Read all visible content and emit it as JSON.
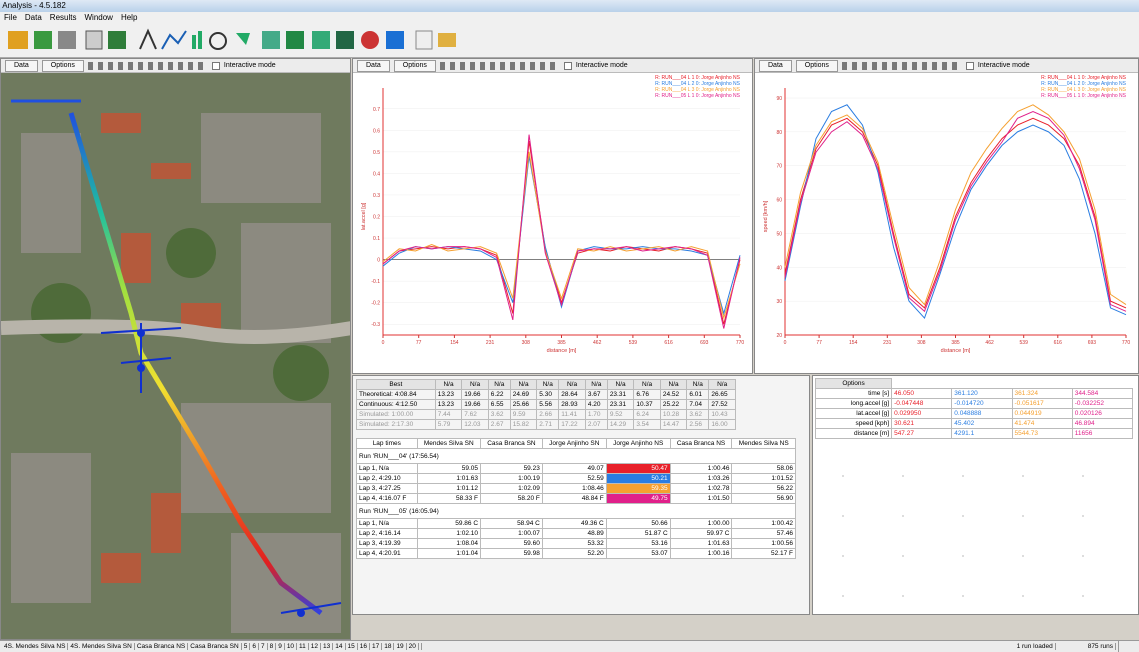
{
  "window": {
    "title": "Analysis - 4.5.182",
    "menu": [
      "File",
      "Data",
      "Results",
      "Window",
      "Help"
    ]
  },
  "panel_buttons": [
    "Data",
    "Options"
  ],
  "interactive_mode": "Interactive mode",
  "chart_data": [
    {
      "type": "line",
      "x_label": "distance [m]",
      "y_label": "lat.accel [g]",
      "x": [
        0,
        35,
        70,
        105,
        140,
        175,
        210,
        245,
        280,
        315,
        350,
        385,
        420,
        455,
        490,
        525,
        560,
        595,
        630,
        665,
        700,
        735,
        770
      ],
      "xlim": [
        0,
        770
      ],
      "xticks": [
        0,
        77,
        154,
        231,
        308,
        385,
        462,
        539,
        616,
        693,
        770
      ],
      "ylim": [
        -0.35,
        0.75
      ],
      "yticks": [
        -0.3,
        -0.2,
        -0.1,
        0,
        0.1,
        0.2,
        0.3,
        0.4,
        0.5,
        0.6,
        0.7
      ],
      "grid": true,
      "series": [
        {
          "name": "R: RUN___04 L 1 0: Jorge Anjinho NS",
          "color": "#e8202a",
          "values": [
            -0.02,
            0.04,
            0.05,
            0.06,
            0.05,
            0.06,
            0.05,
            0.02,
            -0.25,
            0.55,
            0.05,
            -0.2,
            0.03,
            0.05,
            0.04,
            0.06,
            0.05,
            0.04,
            0.06,
            0.05,
            0.03,
            -0.3,
            0.0
          ]
        },
        {
          "name": "R: RUN___04 L 2 0: Jorge Anjinho NS",
          "color": "#2a7de1",
          "values": [
            -0.03,
            0.03,
            0.06,
            0.05,
            0.06,
            0.05,
            0.04,
            0.0,
            -0.2,
            0.48,
            0.06,
            -0.22,
            0.04,
            0.06,
            0.05,
            0.05,
            0.06,
            0.05,
            0.05,
            0.04,
            0.02,
            -0.25,
            0.02
          ]
        },
        {
          "name": "R: RUN___04 L 3 0: Jorge Anjinho NS",
          "color": "#f5a030",
          "values": [
            -0.01,
            0.05,
            0.04,
            0.07,
            0.04,
            0.05,
            0.06,
            0.03,
            -0.18,
            0.5,
            0.04,
            -0.18,
            0.05,
            0.04,
            0.06,
            0.04,
            0.05,
            0.06,
            0.04,
            0.06,
            0.04,
            -0.27,
            -0.02
          ]
        },
        {
          "name": "R: RUN___05 L 1 0: Jorge Anjinho NS",
          "color": "#e0208a",
          "values": [
            -0.02,
            0.04,
            0.06,
            0.05,
            0.06,
            0.06,
            0.05,
            0.01,
            -0.28,
            0.58,
            0.03,
            -0.21,
            0.04,
            0.05,
            0.05,
            0.06,
            0.04,
            0.05,
            0.06,
            0.05,
            0.02,
            -0.32,
            0.01
          ]
        }
      ]
    },
    {
      "type": "line",
      "x_label": "distance [m]",
      "y_label": "speed [km/h]",
      "x": [
        0,
        35,
        70,
        105,
        140,
        175,
        210,
        245,
        280,
        315,
        350,
        385,
        420,
        455,
        490,
        525,
        560,
        595,
        630,
        665,
        700,
        735,
        770
      ],
      "xlim": [
        0,
        770
      ],
      "xticks": [
        0,
        77,
        154,
        231,
        308,
        385,
        462,
        539,
        616,
        693,
        770
      ],
      "ylim": [
        20,
        90
      ],
      "yticks": [
        20,
        30,
        40,
        50,
        60,
        70,
        80,
        90
      ],
      "grid": true,
      "series": [
        {
          "name": "R: RUN___04 L 1 0: Jorge Anjinho NS",
          "color": "#e8202a",
          "values": [
            38,
            60,
            75,
            82,
            84,
            80,
            70,
            50,
            32,
            28,
            40,
            55,
            65,
            72,
            78,
            82,
            84,
            82,
            78,
            70,
            55,
            30,
            28
          ]
        },
        {
          "name": "R: RUN___04 L 2 0: Jorge Anjinho NS",
          "color": "#2a7de1",
          "values": [
            36,
            58,
            78,
            86,
            88,
            82,
            68,
            46,
            30,
            25,
            38,
            52,
            63,
            70,
            76,
            80,
            82,
            80,
            76,
            66,
            50,
            28,
            26
          ]
        },
        {
          "name": "R: RUN___04 L 3 0: Jorge Anjinho NS",
          "color": "#f5a030",
          "values": [
            40,
            62,
            76,
            83,
            85,
            81,
            71,
            52,
            34,
            29,
            42,
            57,
            68,
            75,
            81,
            86,
            88,
            85,
            80,
            72,
            57,
            32,
            29
          ]
        },
        {
          "name": "R: RUN___05 L 1 0: Jorge Anjinho NS",
          "color": "#e0208a",
          "values": [
            37,
            59,
            74,
            80,
            83,
            79,
            69,
            49,
            31,
            27,
            39,
            54,
            64,
            71,
            77,
            84,
            86,
            84,
            79,
            69,
            54,
            29,
            27
          ]
        }
      ]
    }
  ],
  "best_table": {
    "header": [
      "Best",
      "N/a",
      "N/a",
      "N/a",
      "N/a",
      "N/a",
      "N/a",
      "N/a",
      "N/a",
      "N/a",
      "N/a",
      "N/a",
      "N/a"
    ],
    "rows": [
      [
        "Theoretical: 4:08.84",
        "13.23",
        "19.66",
        "6.22",
        "24.69",
        "5.30",
        "28.64",
        "3.67",
        "23.31",
        "6.76",
        "24.52",
        "6.01",
        "26.65"
      ],
      [
        "Continuous: 4:12.50",
        "13.23",
        "19.66",
        "6.55",
        "25.66",
        "5.56",
        "28.93",
        "4.20",
        "23.31",
        "10.37",
        "25.22",
        "7.04",
        "27.52"
      ],
      [
        "Simulated: 1:00.00",
        "7.44",
        "7.62",
        "3.62",
        "9.59",
        "2.66",
        "11.41",
        "1.70",
        "9.52",
        "6.24",
        "10.28",
        "3.62",
        "10.43"
      ],
      [
        "Simulated: 2:17.30",
        "5.79",
        "12.03",
        "2.67",
        "15.82",
        "2.71",
        "17.22",
        "2.07",
        "14.29",
        "3.54",
        "14.47",
        "2.56",
        "16.00"
      ]
    ]
  },
  "lap_table": {
    "header": [
      "Lap times",
      "Mendes Silva SN",
      "Casa Branca SN",
      "Jorge Anjinho SN",
      "Jorge Anjinho NS",
      "Casa Branca NS",
      "Mendes Silva NS"
    ],
    "groups": [
      {
        "label": "Run 'RUN___04' (17:56.54)",
        "rows": [
          [
            "Lap 1, N/a",
            "59.05",
            "59.23",
            "49.07",
            "50.47",
            "1:00.46",
            "58.06"
          ],
          [
            "Lap 2, 4:29.10",
            "1:01.63",
            "1:00.19",
            "52.59",
            "50.21",
            "1:03.26",
            "1:01.52"
          ],
          [
            "Lap 3, 4:27.25",
            "1:01.12",
            "1:02.09",
            "1:08.46",
            "59.35",
            "1:02.78",
            "56.22"
          ],
          [
            "Lap 4, 4:16.07 F",
            "58.33 F",
            "58.20 F",
            "48.84 F",
            "49.75",
            "1:01.50",
            "56.90"
          ]
        ]
      },
      {
        "label": "Run 'RUN___05' (16:05.94)",
        "rows": [
          [
            "Lap 1, N/a",
            "59.86 C",
            "58.94 C",
            "49.36 C",
            "50.66",
            "1:00.00",
            "1:00.42"
          ],
          [
            "Lap 2, 4:16.14",
            "1:02.10",
            "1:00.07",
            "48.89",
            "51.87 C",
            "59.97 C",
            "57.46"
          ],
          [
            "Lap 3, 4:19.39",
            "1:08.04",
            "59.60",
            "53.32",
            "53.16",
            "1:01.63",
            "1:00.56"
          ],
          [
            "Lap 4, 4:20.91",
            "1:01.04",
            "59.98",
            "52.20",
            "53.07",
            "1:00.16",
            "52.17 F"
          ]
        ]
      }
    ]
  },
  "values_table": {
    "header": "Options",
    "rows": [
      [
        "time [s]",
        "46.050",
        "361.120",
        "361.324",
        "344.584"
      ],
      [
        "long.accel [g]",
        "-0.047448",
        "-0.014720",
        "-0.051617",
        "-0.032252"
      ],
      [
        "lat.accel [g]",
        "0.029950",
        "0.048888",
        "0.044919",
        "0.020126"
      ],
      [
        "speed [kph]",
        "30.621",
        "45.402",
        "41.474",
        "46.894"
      ],
      [
        "distance [m]",
        "547.27",
        "4291.1",
        "5544.73",
        "11656"
      ]
    ]
  },
  "status": {
    "tabs": [
      "4S. Mendes Silva NS",
      "4S. Mendes Silva SN",
      "Casa Branca NS",
      "Casa Branca SN",
      "5",
      "6",
      "7",
      "8",
      "9",
      "10",
      "11",
      "12",
      "13",
      "14",
      "15",
      "16",
      "17",
      "18",
      "19",
      "20"
    ],
    "info": [
      "1 run loaded",
      "875 runs"
    ]
  }
}
